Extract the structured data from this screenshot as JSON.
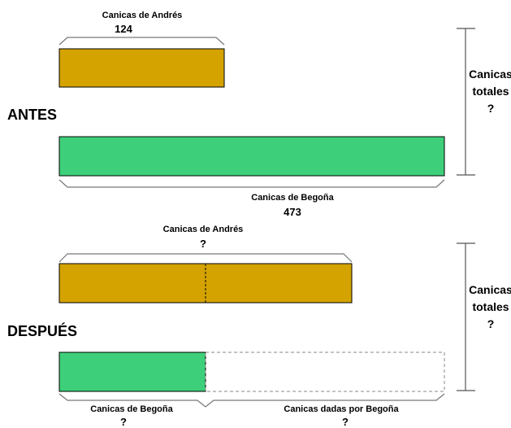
{
  "antes": {
    "section_label": "ANTES",
    "andres_label": "Canicas de Andrés",
    "andres_value": "124",
    "begona_label": "Canicas de Begoña",
    "begona_value": "473",
    "total_label_1": "Canicas",
    "total_label_2": "totales",
    "total_value": "?"
  },
  "despues": {
    "section_label": "DESPUÉS",
    "andres_label": "Canicas de Andrés",
    "andres_value": "?",
    "begona_label": "Canicas de Begoña",
    "begona_value": "?",
    "dadas_label": "Canicas dadas por Begoña",
    "dadas_value": "?",
    "total_label_1": "Canicas",
    "total_label_2": "totales",
    "total_value": "?"
  },
  "colors": {
    "andres": "#D4A300",
    "begona": "#3ECF7A",
    "outline": "#000000",
    "brace": "#777777"
  }
}
